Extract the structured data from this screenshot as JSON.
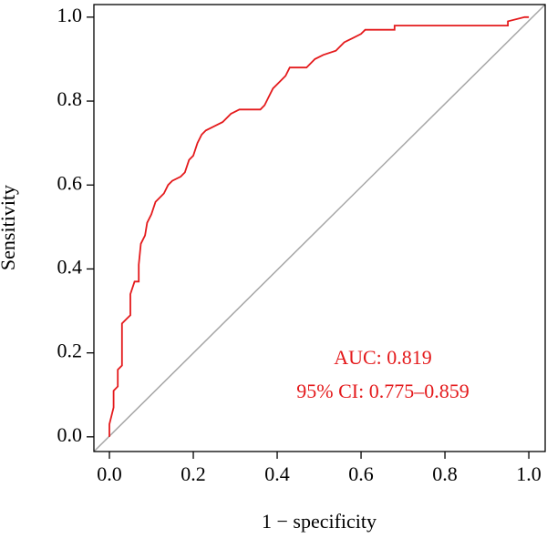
{
  "chart_data": {
    "type": "line",
    "xlabel": "1 − specificity",
    "ylabel": "Sensitivity",
    "x": [
      0,
      0,
      0.005,
      0.01,
      0.01,
      0.02,
      0.02,
      0.03,
      0.03,
      0.04,
      0.05,
      0.05,
      0.06,
      0.07,
      0.07,
      0.075,
      0.08,
      0.085,
      0.09,
      0.1,
      0.11,
      0.12,
      0.13,
      0.14,
      0.15,
      0.17,
      0.18,
      0.19,
      0.2,
      0.21,
      0.22,
      0.23,
      0.25,
      0.27,
      0.29,
      0.31,
      0.36,
      0.37,
      0.38,
      0.39,
      0.4,
      0.42,
      0.43,
      0.47,
      0.49,
      0.51,
      0.54,
      0.56,
      0.58,
      0.6,
      0.61,
      0.68,
      0.68,
      0.95,
      0.95,
      0.99,
      1
    ],
    "values": [
      0,
      0.03,
      0.05,
      0.07,
      0.11,
      0.12,
      0.16,
      0.17,
      0.27,
      0.28,
      0.29,
      0.34,
      0.37,
      0.37,
      0.41,
      0.46,
      0.47,
      0.48,
      0.51,
      0.53,
      0.56,
      0.57,
      0.58,
      0.6,
      0.61,
      0.62,
      0.63,
      0.66,
      0.67,
      0.7,
      0.72,
      0.73,
      0.74,
      0.75,
      0.77,
      0.78,
      0.78,
      0.79,
      0.81,
      0.83,
      0.84,
      0.86,
      0.88,
      0.88,
      0.9,
      0.91,
      0.92,
      0.94,
      0.95,
      0.96,
      0.97,
      0.97,
      0.98,
      0.98,
      0.99,
      1.0,
      1.0
    ],
    "color": "#e41a1c",
    "reference_color": "#a6a6a6",
    "xlim": [
      -0.037,
      1.039
    ],
    "ylim": [
      -0.035,
      1.03
    ],
    "xticks": [
      {
        "value": 0,
        "label": "0.0"
      },
      0.2,
      0.4,
      0.6,
      0.8,
      {
        "value": 1,
        "label": "1.0"
      }
    ],
    "yticks": [
      {
        "value": 0,
        "label": "0.0"
      },
      0.2,
      0.4,
      0.6,
      0.8,
      {
        "value": 1,
        "label": "1.0"
      }
    ],
    "annotations": [
      "AUC: 0.819",
      "95% CI: 0.775–0.859"
    ]
  }
}
